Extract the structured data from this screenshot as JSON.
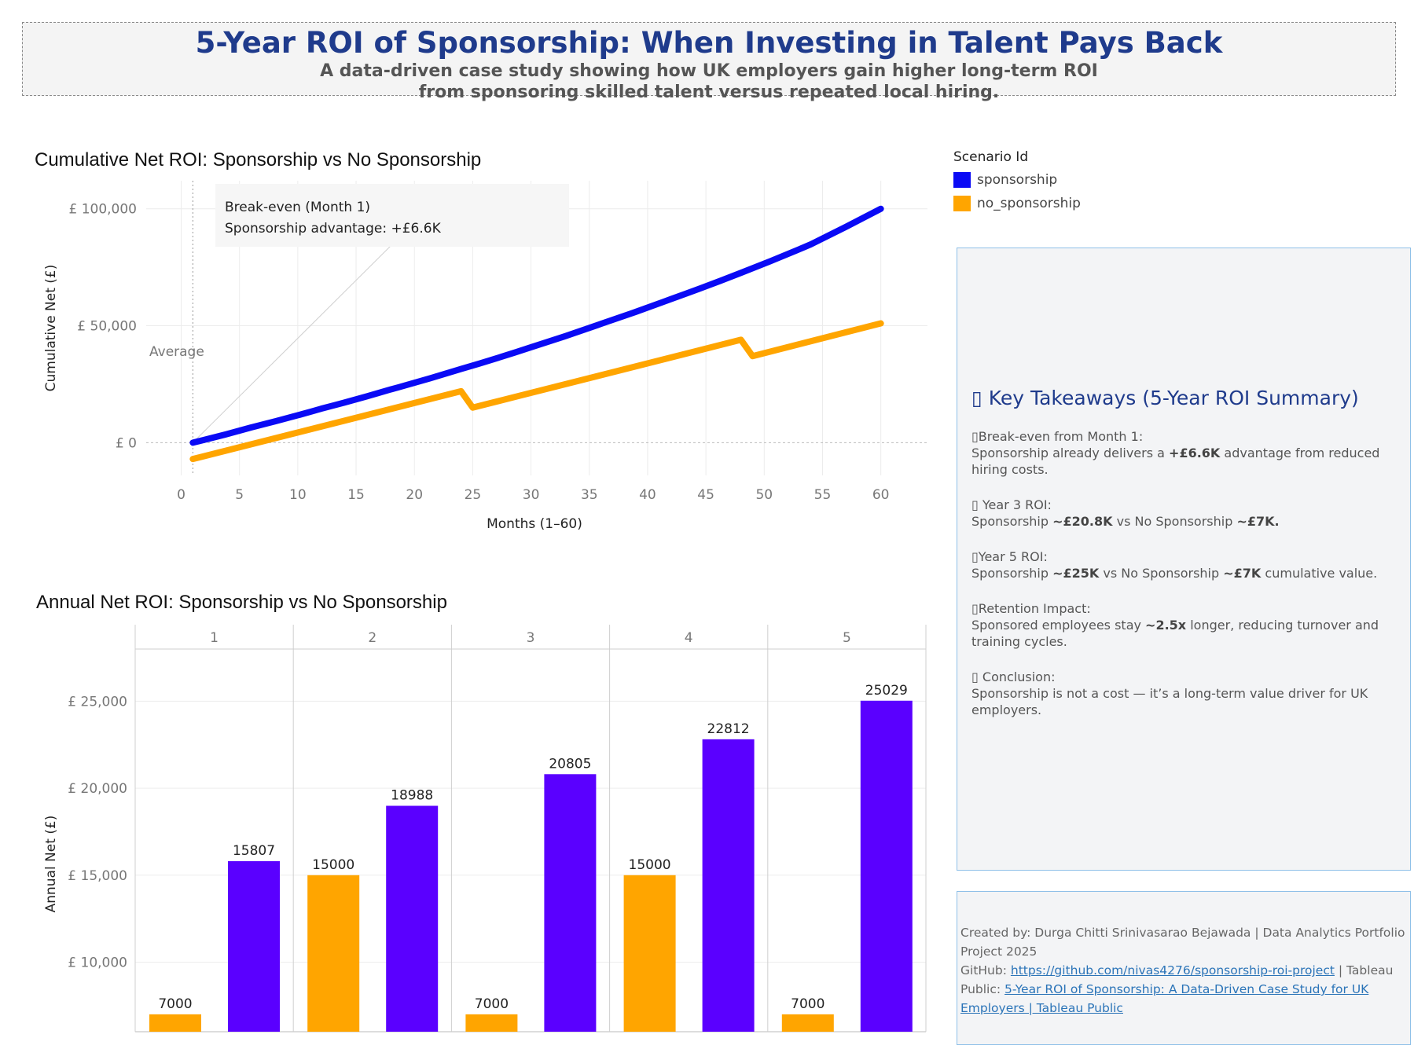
{
  "header": {
    "title": "5-Year ROI of Sponsorship: When Investing in Talent Pays Back",
    "subtitle_line1": "A data-driven case study showing how UK employers gain higher long-term ROI",
    "subtitle_line2": "from sponsoring skilled talent versus repeated local hiring."
  },
  "legend": {
    "title": "Scenario Id",
    "items": [
      {
        "label": "sponsorship",
        "color": "#0a0af5"
      },
      {
        "label": "no_sponsorship",
        "color": "#ffa500"
      }
    ]
  },
  "chart_data": [
    {
      "type": "line",
      "title": "Cumulative Net ROI: Sponsorship vs No Sponsorship",
      "xlabel": "Months (1–60)",
      "ylabel": "Cumulative Net (£)",
      "xlim": [
        -3,
        64
      ],
      "ylim": [
        -14000,
        112000
      ],
      "x_ticks": [
        "0",
        "5",
        "10",
        "15",
        "20",
        "25",
        "30",
        "35",
        "40",
        "45",
        "50",
        "55",
        "60"
      ],
      "y_ticks": [
        "£ 0",
        "£ 50,000",
        "£ 100,000"
      ],
      "grid": true,
      "reference_line": {
        "x": 1,
        "label": "Average"
      },
      "annotation": {
        "line1": "Break-even (Month 1)",
        "line2": "Sponsorship advantage: +£6.6K"
      },
      "series": [
        {
          "name": "sponsorship",
          "color": "#0a0af5",
          "x": [
            1,
            6,
            12,
            18,
            24,
            30,
            36,
            42,
            48,
            54,
            60
          ],
          "values": [
            0,
            6500,
            14500,
            22800,
            31500,
            40800,
            50800,
            61400,
            72600,
            84800,
            100000
          ]
        },
        {
          "name": "no_sponsorship",
          "color": "#ffa500",
          "x": [
            1,
            24,
            25,
            48,
            49,
            60
          ],
          "values": [
            -7000,
            22000,
            15000,
            44000,
            37000,
            51000
          ]
        }
      ]
    },
    {
      "type": "bar",
      "title": "Annual Net ROI: Sponsorship vs No Sponsorship",
      "ylabel": "Annual Net (£)",
      "ylim": [
        6000,
        28000
      ],
      "y_ticks": [
        "£ 10,000",
        "£ 15,000",
        "£ 20,000",
        "£ 25,000"
      ],
      "categories": [
        "1",
        "2",
        "3",
        "4",
        "5"
      ],
      "series": [
        {
          "name": "no_sponsorship",
          "color": "#ffa500",
          "values": [
            7000,
            15000,
            7000,
            15000,
            7000
          ]
        },
        {
          "name": "sponsorship",
          "color": "#5a00ff",
          "values": [
            15807,
            18988,
            20805,
            22812,
            25029
          ]
        }
      ],
      "labels": {
        "no_sponsorship": [
          "7000",
          "15000",
          "7000",
          "15000",
          "7000"
        ],
        "sponsorship": [
          "15807",
          "18988",
          "20805",
          "22812",
          "25029"
        ]
      }
    }
  ],
  "takeaways": {
    "title": "▯ Key Takeaways (5-Year ROI Summary)",
    "items": [
      {
        "head": "▯Break-even from Month 1:",
        "pre": "Sponsorship already delivers a ",
        "bold1": "+£6.6K",
        "mid": " advantage from reduced hiring costs.",
        "bold2": "",
        "post": ""
      },
      {
        "head": "▯ Year 3 ROI:",
        "pre": "Sponsorship ",
        "bold1": "~£20.8K",
        "mid": " vs No Sponsorship ",
        "bold2": "~£7K.",
        "post": ""
      },
      {
        "head": "▯Year 5 ROI:",
        "pre": "Sponsorship ",
        "bold1": "~£25K",
        "mid": " vs No Sponsorship ",
        "bold2": "~£7K",
        "post": " cumulative value."
      },
      {
        "head": "▯Retention Impact:",
        "pre": "Sponsored employees stay ",
        "bold1": "~2.5x",
        "mid": " longer, reducing turnover and training cycles.",
        "bold2": "",
        "post": ""
      },
      {
        "head": "▯ Conclusion:",
        "pre": "Sponsorship is not a cost — it’s a long-term value driver for UK employers.",
        "bold1": "",
        "mid": "",
        "bold2": "",
        "post": ""
      }
    ]
  },
  "credits": {
    "line1": "Created by: Durga Chitti Srinivasarao Bejawada | Data Analytics Portfolio Project 2025",
    "github_prefix": "GitHub: ",
    "github_link": "https://github.com/nivas4276/sponsorship-roi-project",
    "tableau_prefix": " | Tableau Public: ",
    "tableau_link": "5-Year ROI of Sponsorship: A Data-Driven Case Study for UK Employers | Tableau Public"
  }
}
